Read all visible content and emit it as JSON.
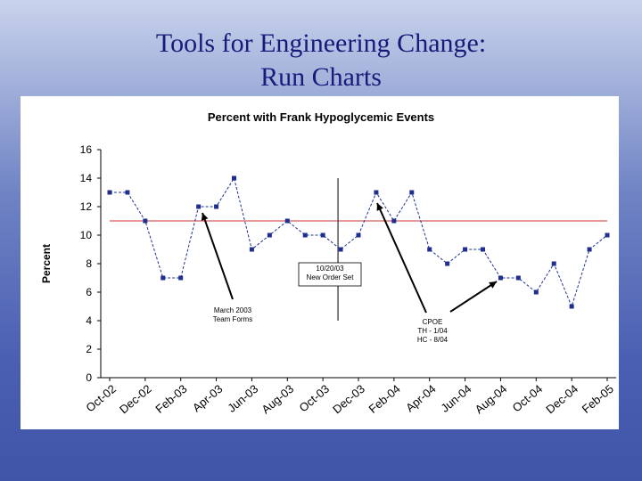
{
  "slide": {
    "title_line1": "Tools for Engineering Change:",
    "title_line2": "Run Charts"
  },
  "colors": {
    "background_top": "#c9d3ec",
    "background_bottom": "#3f55a8",
    "title_text": "#1a1a7a",
    "series": "#1f2f8f",
    "reference_line": "#cc3333",
    "event_line": "#555555"
  },
  "chart_data": {
    "type": "line",
    "title": "Percent with Frank Hypoglycemic Events",
    "xlabel": "",
    "ylabel": "Percent",
    "ylim": [
      0,
      16
    ],
    "yticks": [
      0,
      2,
      4,
      6,
      8,
      10,
      12,
      14,
      16
    ],
    "grid": false,
    "legend": "none",
    "categories": [
      "Oct-02",
      "Nov-02",
      "Dec-02",
      "Jan-03",
      "Feb-03",
      "Mar-03",
      "Apr-03",
      "May-03",
      "Jun-03",
      "Jul-03",
      "Aug-03",
      "Sep-03",
      "Oct-03",
      "Nov-03",
      "Dec-03",
      "Jan-04",
      "Feb-04",
      "Mar-04",
      "Apr-04",
      "May-04",
      "Jun-04",
      "Jul-04",
      "Aug-04",
      "Sep-04",
      "Oct-04",
      "Nov-04",
      "Dec-04",
      "Jan-05",
      "Feb-05"
    ],
    "tick_labels": [
      "Oct-02",
      "Dec-02",
      "Feb-03",
      "Apr-03",
      "Jun-03",
      "Aug-03",
      "Oct-03",
      "Dec-03",
      "Feb-04",
      "Apr-04",
      "Jun-04",
      "Aug-04",
      "Oct-04",
      "Dec-04",
      "Feb-05"
    ],
    "series": [
      {
        "name": "Percent with Frank Hypoglycemic Events",
        "values": [
          13,
          13,
          11,
          7,
          7,
          12,
          12,
          14,
          9,
          10,
          11,
          10,
          10,
          9,
          10,
          13,
          11,
          13,
          9,
          8,
          9,
          9,
          7,
          7,
          6,
          8,
          5,
          9,
          10
        ]
      }
    ],
    "reference_line": 11,
    "event_marker_category": "Nov-03",
    "annotations": [
      {
        "lines": [
          "March 2003",
          "Team Forms"
        ],
        "category": "Mar-03"
      },
      {
        "lines": [
          "10/20/03",
          "New Order Set"
        ],
        "category": "Nov-03"
      },
      {
        "lines": [
          "CPOE",
          "TH - 1/04",
          "HC - 8/04"
        ],
        "category": "Jan-04"
      }
    ]
  }
}
